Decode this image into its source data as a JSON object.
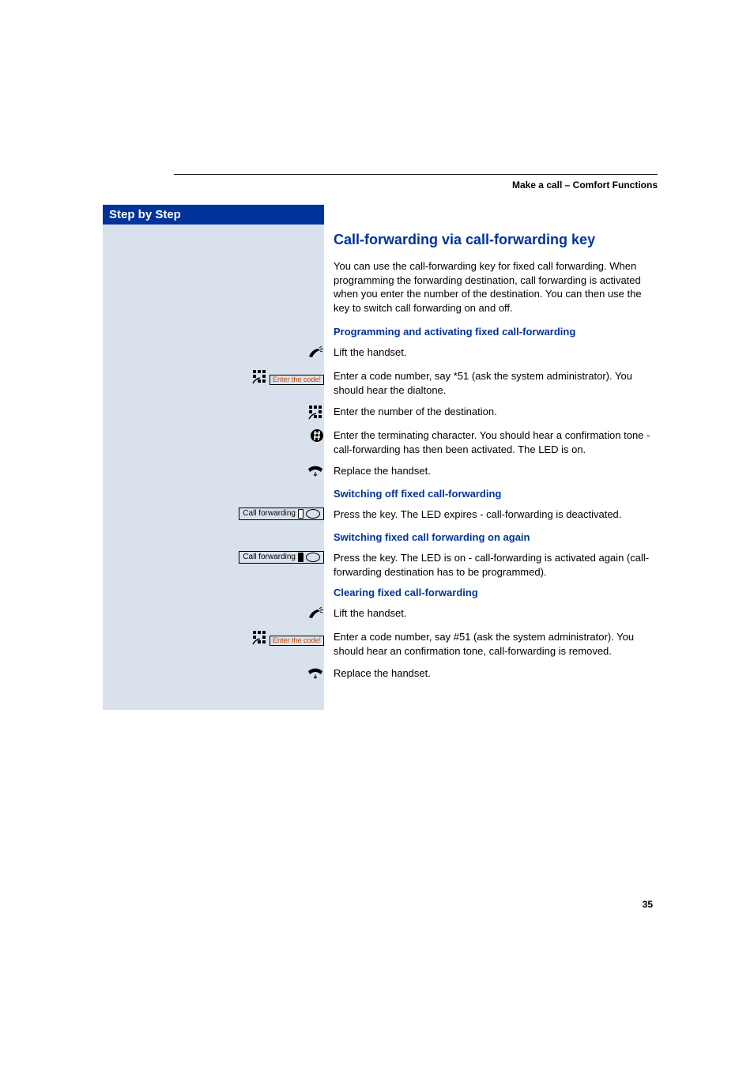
{
  "header": {
    "breadcrumb": "Make a call – Comfort Functions"
  },
  "sidebar": {
    "title": "Step by Step"
  },
  "main": {
    "heading": "Call-forwarding via call-forwarding key",
    "intro": "You can use the call-forwarding key for fixed call forwarding. When programming the forwarding destination, call forwarding is activated when you enter the number of the destination. You can then use the key to switch call forwarding on and off.",
    "sections": [
      {
        "title": "Programming and activating fixed call-forwarding",
        "rows": [
          {
            "icon": "handset-lift",
            "text": "Lift the handset."
          },
          {
            "icon": "keypad-code",
            "code_label": "Enter the code!",
            "text": "Enter a code number, say *51 (ask the system administrator). You should hear the dialtone."
          },
          {
            "icon": "keypad",
            "text": "Enter the number of the destination."
          },
          {
            "icon": "hash",
            "text": "Enter the terminating character. You should hear a confirmation tone - call-forwarding has then been activated. The LED is on."
          },
          {
            "icon": "handset-replace",
            "text": "Replace the handset."
          }
        ]
      },
      {
        "title": "Switching off fixed call-forwarding",
        "rows": [
          {
            "icon": "key-led-off",
            "key_label": "Call forwarding",
            "text": "Press the key. The LED expires - call-forwarding is deactivated."
          }
        ]
      },
      {
        "title": "Switching fixed call forwarding on again",
        "rows": [
          {
            "icon": "key-led-on",
            "key_label": "Call forwarding",
            "text": "Press the key. The LED is on - call-forwarding is activated again (call-forwarding destination has to be programmed)."
          }
        ]
      },
      {
        "title": "Clearing fixed call-forwarding",
        "rows": [
          {
            "icon": "handset-lift",
            "text": "Lift the handset."
          },
          {
            "icon": "keypad-code",
            "code_label": "Enter the code!",
            "text": "Enter a code number, say #51 (ask the system administrator). You should hear an confirmation tone, call-forwarding is removed."
          },
          {
            "icon": "handset-replace",
            "text": "Replace the handset."
          }
        ]
      }
    ]
  },
  "page_number": "35",
  "colors": {
    "brand_blue": "#003399",
    "sidebar_bg": "#d9e2ec",
    "code_text": "#cc4400"
  }
}
